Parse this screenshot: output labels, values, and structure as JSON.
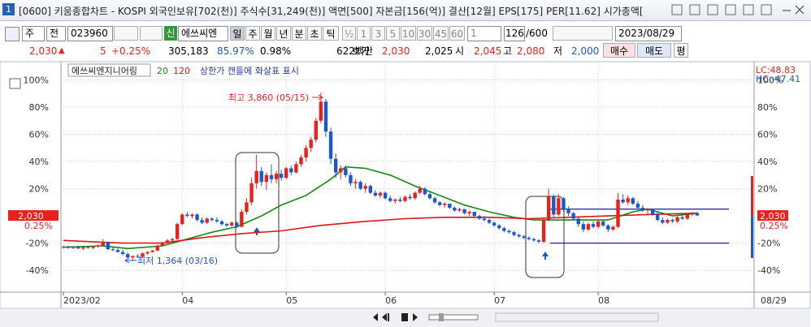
{
  "title_bar": {
    "icon": "1",
    "text": "[0600] 키움종합차트 - KOSPI 외국인보유[702(천)] 주식수[31,249(천)] 액면[500] 자본금[156(억)] 결산[12월] EPS[175] PER[11.62] 시가총액["
  },
  "toolbar": {
    "period": "주",
    "prev": "전",
    "code": "023960",
    "new": "신",
    "name": "에쓰씨엔지",
    "intervals": [
      "일",
      "주",
      "월",
      "년",
      "분",
      "초",
      "틱"
    ],
    "half": "½",
    "minutes": [
      "1",
      "3",
      "5",
      "10",
      "30",
      "45",
      "60"
    ],
    "unit": "1",
    "count": "126",
    "max": "/600",
    "date": "2023/08/29"
  },
  "quote": {
    "price": "2,030",
    "arrow": "▲",
    "change": "5",
    "rate": "+0.25%",
    "volume": "305,183",
    "vol_ratio": "85.97%",
    "turnover": "0.98%",
    "amount": "622백만",
    "ask_label": "호가",
    "ask": "2,030",
    "bid": "2,025",
    "open_label": "시",
    "open": "2,045",
    "high_label": "고",
    "high": "2,080",
    "low_label": "저",
    "low": "2,000",
    "buy": "매수",
    "sell": "매도",
    "avg": "평"
  },
  "chart_data": {
    "type": "candlestick",
    "name": "에쓰씨엔지니어링",
    "note": "상한가 캔들에 화살표 표시",
    "up_color": "#e8211d",
    "down_color": "#1c58c8",
    "ylim": [
      -56,
      108
    ],
    "yticks": [
      {
        "value": 100,
        "label": "100%"
      },
      {
        "value": 80,
        "label": "80%"
      },
      {
        "value": 60,
        "label": "60%"
      },
      {
        "value": 40,
        "label": "40%"
      },
      {
        "value": 20,
        "label": "20%"
      },
      {
        "value": -20,
        "label": "-20%"
      },
      {
        "value": -40,
        "label": "-40%"
      }
    ],
    "grid": true,
    "last_price": "2,030",
    "last_rate": "0.25%",
    "lc": "LC:48.83",
    "hc": "HC:-47.41",
    "last_date": "08/29",
    "high_note": "최고 3,860 (05/15)",
    "low_note": "최저 1,364 (03/16)",
    "categories": [
      "2023/02",
      null,
      null,
      null,
      null,
      null,
      null,
      null,
      null,
      null,
      null,
      null,
      null,
      null,
      null,
      null,
      null,
      null,
      null,
      null,
      null,
      null,
      null,
      null,
      "04",
      null,
      null,
      null,
      null,
      null,
      null,
      null,
      null,
      null,
      null,
      null,
      null,
      null,
      null,
      null,
      null,
      null,
      null,
      null,
      null,
      "05",
      null,
      null,
      null,
      null,
      null,
      null,
      null,
      null,
      null,
      null,
      null,
      null,
      null,
      null,
      null,
      null,
      null,
      null,
      null,
      "06",
      null,
      null,
      null,
      null,
      null,
      null,
      null,
      null,
      null,
      null,
      null,
      null,
      null,
      null,
      null,
      null,
      null,
      null,
      null,
      null,
      null,
      "07",
      null,
      null,
      null,
      null,
      null,
      null,
      null,
      null,
      null,
      null,
      null,
      null,
      null,
      null,
      null,
      null,
      null,
      null,
      null,
      null,
      "08",
      null,
      null,
      null,
      null,
      null,
      null,
      null,
      null,
      null,
      null,
      null,
      null,
      null,
      null,
      null,
      null,
      null,
      null,
      null,
      null
    ],
    "candles": [
      [
        -23,
        -22,
        -24,
        -22.5
      ],
      [
        -22.5,
        -22,
        -24,
        -23.5
      ],
      [
        -23.5,
        -22.5,
        -24.5,
        -23
      ],
      [
        -23,
        -22,
        -24,
        -24
      ],
      [
        -24,
        -23,
        -25,
        -23
      ],
      [
        -23,
        -22,
        -24,
        -23.5
      ],
      [
        -23.5,
        -22,
        -24.5,
        -22.5
      ],
      [
        -22.5,
        -21,
        -23.5,
        -22
      ],
      [
        -22,
        -17,
        -22.5,
        -19
      ],
      [
        -19,
        -19,
        -25,
        -24.5
      ],
      [
        -24.5,
        -23,
        -26,
        -25
      ],
      [
        -25,
        -24,
        -27,
        -26.5
      ],
      [
        -26.5,
        -25,
        -29,
        -28
      ],
      [
        -28,
        -27,
        -31,
        -30.5
      ],
      [
        -30.5,
        -29,
        -32.6,
        -29.5
      ],
      [
        -29.5,
        -28,
        -31,
        -30
      ],
      [
        -30,
        -27,
        -30.5,
        -27.5
      ],
      [
        -27.5,
        -26,
        -28.5,
        -26.5
      ],
      [
        -26.5,
        -25,
        -27,
        -25.5
      ],
      [
        -25.5,
        -21,
        -26,
        -22
      ],
      [
        -22,
        -19,
        -22.5,
        -20
      ],
      [
        -20,
        -17,
        -21,
        -18
      ],
      [
        -18,
        -16,
        -19,
        -17
      ],
      [
        -17,
        -5,
        -17.5,
        -6
      ],
      [
        -6,
        2,
        -7,
        1
      ],
      [
        1,
        3,
        -1,
        0
      ],
      [
        0,
        2,
        -2,
        1
      ],
      [
        1,
        2,
        -4,
        -3
      ],
      [
        -3,
        -1,
        -6,
        -5
      ],
      [
        -5,
        -1,
        -6,
        -2
      ],
      [
        -2,
        -1,
        -4,
        -3
      ],
      [
        -3,
        -1,
        -5,
        -4
      ],
      [
        -4,
        -3,
        -7,
        -6
      ],
      [
        -6,
        -5,
        -8,
        -7
      ],
      [
        -7,
        -4,
        -8,
        -5
      ],
      [
        -5,
        -4,
        -9,
        -8
      ],
      [
        -8,
        5,
        -8.5,
        3
      ],
      [
        3,
        13,
        1,
        10
      ],
      [
        10,
        28,
        8,
        24
      ],
      [
        24,
        45,
        20,
        33
      ],
      [
        33,
        36,
        22,
        25
      ],
      [
        25,
        32,
        19,
        30
      ],
      [
        30,
        38,
        24,
        27
      ],
      [
        27,
        33,
        24,
        31
      ],
      [
        31,
        34,
        26,
        28
      ],
      [
        28,
        36,
        27,
        35
      ],
      [
        35,
        37,
        30,
        32
      ],
      [
        32,
        40,
        31,
        38
      ],
      [
        38,
        45,
        36,
        43
      ],
      [
        43,
        52,
        40,
        50
      ],
      [
        50,
        58,
        47,
        56
      ],
      [
        56,
        72,
        54,
        70
      ],
      [
        70,
        90.6,
        68,
        84
      ],
      [
        84,
        86,
        58,
        62
      ],
      [
        62,
        65,
        38,
        42
      ],
      [
        42,
        46,
        28,
        32
      ],
      [
        32,
        37,
        27,
        35
      ],
      [
        35,
        37,
        28,
        30
      ],
      [
        30,
        32,
        22,
        24
      ],
      [
        24,
        27,
        20,
        25
      ],
      [
        25,
        26,
        19,
        20
      ],
      [
        20,
        24,
        17,
        22
      ],
      [
        22,
        23,
        16,
        17
      ],
      [
        17,
        19,
        14,
        15
      ],
      [
        15,
        18,
        13,
        17
      ],
      [
        17,
        18,
        12,
        13
      ],
      [
        13,
        15,
        10,
        11
      ],
      [
        11,
        13,
        9,
        12
      ],
      [
        12,
        14,
        10,
        11
      ],
      [
        11,
        15,
        10,
        14
      ],
      [
        14,
        16,
        12,
        13
      ],
      [
        13,
        18,
        12,
        17
      ],
      [
        17,
        22,
        16,
        20
      ],
      [
        20,
        21,
        15,
        16
      ],
      [
        16,
        17,
        12,
        13
      ],
      [
        13,
        14,
        9,
        10
      ],
      [
        10,
        11,
        7,
        8
      ],
      [
        8,
        10,
        6,
        9
      ],
      [
        9,
        9,
        5,
        6
      ],
      [
        6,
        7,
        3,
        4
      ],
      [
        4,
        6,
        3,
        5
      ],
      [
        5,
        5,
        1,
        2
      ],
      [
        2,
        4,
        0,
        3
      ],
      [
        3,
        3,
        -1,
        0
      ],
      [
        0,
        1,
        -3,
        -2
      ],
      [
        -2,
        0,
        -4,
        -3
      ],
      [
        -3,
        -2,
        -6,
        -5
      ],
      [
        -5,
        -4,
        -8,
        -7
      ],
      [
        -7,
        -6,
        -10,
        -9
      ],
      [
        -9,
        -8,
        -12,
        -11
      ],
      [
        -11,
        -10,
        -13,
        -12
      ],
      [
        -12,
        -11,
        -15,
        -14
      ],
      [
        -14,
        -13,
        -16,
        -15
      ],
      [
        -15,
        -14,
        -17,
        -16
      ],
      [
        -16,
        -15,
        -18,
        -17
      ],
      [
        -17,
        -16,
        -19,
        -18
      ],
      [
        -18,
        -17,
        -20,
        -19
      ],
      [
        -19,
        -2,
        -20,
        -3
      ],
      [
        -3,
        20,
        -4,
        14
      ],
      [
        14,
        16,
        -1,
        1
      ],
      [
        1,
        16,
        0,
        13
      ],
      [
        13,
        14,
        3,
        5
      ],
      [
        5,
        7,
        0,
        2
      ],
      [
        2,
        3,
        -3,
        -2
      ],
      [
        -2,
        -1,
        -8,
        -6
      ],
      [
        -6,
        -4,
        -12,
        -10
      ],
      [
        -10,
        -5,
        -11,
        -6
      ],
      [
        -6,
        -4,
        -9,
        -8
      ],
      [
        -8,
        -3,
        -9,
        -4
      ],
      [
        -4,
        -3,
        -8,
        -7
      ],
      [
        -7,
        -6,
        -12,
        -10
      ],
      [
        -10,
        -7,
        -11,
        -8
      ],
      [
        -8,
        17,
        -9,
        12
      ],
      [
        12,
        16,
        9,
        10
      ],
      [
        10,
        15,
        8,
        13
      ],
      [
        13,
        14,
        8,
        9
      ],
      [
        9,
        11,
        5,
        6
      ],
      [
        6,
        8,
        3,
        4
      ],
      [
        4,
        6,
        1,
        5
      ],
      [
        5,
        5,
        0,
        1
      ],
      [
        1,
        3,
        -4,
        -3
      ],
      [
        -3,
        -1,
        -6,
        -5
      ],
      [
        -5,
        -2,
        -6,
        -3
      ],
      [
        -3,
        -2,
        -5,
        -4
      ],
      [
        -4,
        0,
        -5,
        -1
      ],
      [
        -1,
        1,
        -3,
        -2
      ],
      [
        -2,
        2,
        -3,
        1
      ],
      [
        1,
        3,
        0,
        2
      ],
      [
        2,
        3,
        0.5,
        0.25
      ]
    ],
    "series": [
      {
        "name": "20",
        "color": "#138a13",
        "x": [
          0,
          8,
          13,
          20,
          24,
          30,
          35,
          40,
          44,
          49,
          54,
          57,
          61,
          66,
          71,
          76,
          81,
          86,
          91,
          95,
          100,
          105,
          110,
          115,
          118,
          123,
          128
        ],
        "values": [
          -23,
          -22,
          -24,
          -22,
          -18,
          -12,
          -8,
          0,
          8,
          15,
          27,
          36,
          35,
          30,
          22,
          15,
          8,
          3,
          -1,
          -3,
          -3,
          -3,
          -3,
          3,
          5,
          0,
          2
        ]
      },
      {
        "name": "120",
        "color": "#d81818",
        "x": [
          0,
          12,
          20,
          28,
          36,
          44,
          52,
          61,
          69,
          77,
          86,
          94,
          102,
          110,
          118,
          128
        ],
        "values": [
          -18,
          -20,
          -20,
          -16,
          -13,
          -11,
          -7,
          -4,
          -2,
          -1,
          -1,
          -2,
          -1,
          0,
          1,
          2
        ]
      }
    ],
    "lines": [
      {
        "value": 5,
        "color": "#1a1aa8"
      },
      {
        "value": -20,
        "color": "#1a1aa8"
      }
    ]
  }
}
